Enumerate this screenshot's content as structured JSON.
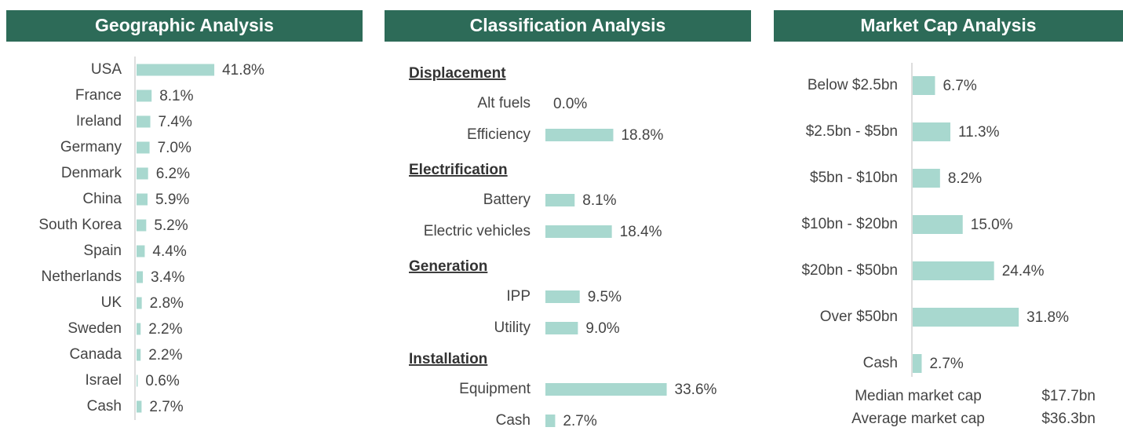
{
  "chart_data": [
    {
      "type": "bar",
      "title": "Geographic Analysis",
      "categories": [
        "USA",
        "France",
        "Ireland",
        "Germany",
        "Denmark",
        "China",
        "South Korea",
        "Spain",
        "Netherlands",
        "UK",
        "Sweden",
        "Canada",
        "Israel",
        "Cash"
      ],
      "values": [
        41.8,
        8.1,
        7.4,
        7.0,
        6.2,
        5.9,
        5.2,
        4.4,
        3.4,
        2.8,
        2.2,
        2.2,
        0.6,
        2.7
      ],
      "value_labels": [
        "41.8%",
        "8.1%",
        "7.4%",
        "7.0%",
        "6.2%",
        "5.9%",
        "5.2%",
        "4.4%",
        "3.4%",
        "2.8%",
        "2.2%",
        "2.2%",
        "0.6%",
        "2.7%"
      ],
      "color": "#a8d8cf"
    },
    {
      "type": "grouped_bar",
      "title": "Classification Analysis",
      "groups": [
        {
          "name": "Displacement",
          "categories": [
            "Alt fuels",
            "Efficiency"
          ],
          "values": [
            0.0,
            18.8
          ],
          "value_labels": [
            "0.0%",
            "18.8%"
          ]
        },
        {
          "name": "Electrification",
          "categories": [
            "Battery",
            "Electric vehicles"
          ],
          "values": [
            8.1,
            18.4
          ],
          "value_labels": [
            "8.1%",
            "18.4%"
          ]
        },
        {
          "name": "Generation",
          "categories": [
            "IPP",
            "Utility"
          ],
          "values": [
            9.5,
            9.0
          ],
          "value_labels": [
            "9.5%",
            "9.0%"
          ]
        },
        {
          "name": "Installation",
          "categories": [
            "Equipment",
            "Cash"
          ],
          "values": [
            33.6,
            2.7
          ],
          "value_labels": [
            "33.6%",
            "2.7%"
          ]
        }
      ],
      "color": "#a8d8cf"
    },
    {
      "type": "bar",
      "title": "Market Cap Analysis",
      "categories": [
        "Below $2.5bn",
        "$2.5bn - $5bn",
        "$5bn - $10bn",
        "$10bn - $20bn",
        "$20bn - $50bn",
        "Over $50bn",
        "Cash"
      ],
      "values": [
        6.7,
        11.3,
        8.2,
        15.0,
        24.4,
        31.8,
        2.7
      ],
      "value_labels": [
        "6.7%",
        "11.3%",
        "8.2%",
        "15.0%",
        "24.4%",
        "31.8%",
        "2.7%"
      ],
      "color": "#a8d8cf",
      "stats": [
        {
          "label": "Median market cap",
          "value": "$17.7bn"
        },
        {
          "label": "Average market cap",
          "value": "$36.3bn"
        }
      ]
    }
  ]
}
